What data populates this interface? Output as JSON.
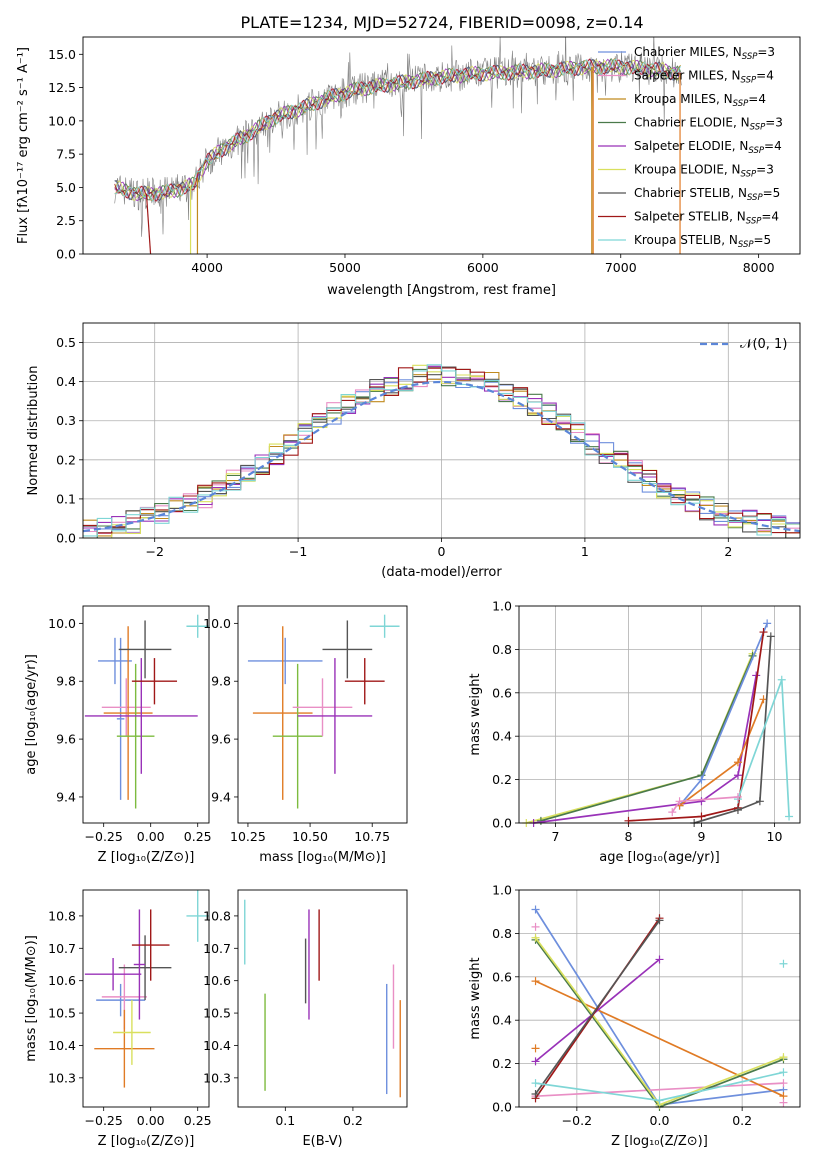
{
  "colors": {
    "Chabrier MILES": "#6e8fdd",
    "Salpeter MILES": "#e98fc5",
    "Kroupa MILES": "#c08a1e",
    "Chabrier ELODIE": "#4a7a4a",
    "Salpeter ELODIE": "#9932b8",
    "Kroupa ELODIE": "#d9e05e",
    "Chabrier STELIB": "#555555",
    "Salpeter STELIB": "#a01818",
    "Kroupa STELIB": "#7fd6d6",
    "data": "#808080",
    "gaussian": "#5b86d8",
    "orange": "#e07b25",
    "green": "#7dbb3f"
  },
  "chart_data": [
    {
      "id": "spectrum",
      "type": "line",
      "title": "PLATE=1234, MJD=52724, FIBERID=0098, z=0.14",
      "xlabel": "wavelength [Angstrom, rest frame]",
      "ylabel": "Flux [fλ10⁻¹⁷ erg cm⁻² s⁻¹ A⁻¹]",
      "xlim": [
        3100,
        8300
      ],
      "ylim": [
        0,
        16.3
      ],
      "xticks": [
        "4000",
        "5000",
        "6000",
        "7000",
        "8000"
      ],
      "yticks": [
        "0.0",
        "2.5",
        "5.0",
        "7.5",
        "10.0",
        "12.5",
        "15.0"
      ],
      "grid": false,
      "legend_position": "top-right",
      "legend": [
        {
          "name": "Chabrier MILES",
          "label": "Chabrier MILES, N",
          "sub": "SSP",
          "val": "=3"
        },
        {
          "name": "Salpeter MILES",
          "label": "Salpeter MILES, N",
          "sub": "SSP",
          "val": "=4"
        },
        {
          "name": "Kroupa MILES",
          "label": "Kroupa MILES, N",
          "sub": "SSP",
          "val": "=4"
        },
        {
          "name": "Chabrier ELODIE",
          "label": "Chabrier ELODIE, N",
          "sub": "SSP",
          "val": "=3"
        },
        {
          "name": "Salpeter ELODIE",
          "label": "Salpeter ELODIE, N",
          "sub": "SSP",
          "val": "=4"
        },
        {
          "name": "Kroupa ELODIE",
          "label": "Kroupa ELODIE, N",
          "sub": "SSP",
          "val": "=3"
        },
        {
          "name": "Chabrier STELIB",
          "label": "Chabrier STELIB, N",
          "sub": "SSP",
          "val": "=5"
        },
        {
          "name": "Salpeter STELIB",
          "label": "Salpeter STELIB, N",
          "sub": "SSP",
          "val": "=4"
        },
        {
          "name": "Kroupa STELIB",
          "label": "Kroupa STELIB, N",
          "sub": "SSP",
          "val": "=5"
        }
      ],
      "continuum": [
        [
          3330,
          5.0
        ],
        [
          3500,
          4.5
        ],
        [
          3700,
          4.6
        ],
        [
          3900,
          5.2
        ],
        [
          4000,
          7.0
        ],
        [
          4100,
          7.8
        ],
        [
          4300,
          9.0
        ],
        [
          4500,
          10.3
        ],
        [
          4700,
          11.0
        ],
        [
          4900,
          11.8
        ],
        [
          5100,
          12.4
        ],
        [
          5300,
          12.7
        ],
        [
          5500,
          13.0
        ],
        [
          5700,
          13.3
        ],
        [
          5900,
          13.5
        ],
        [
          6100,
          13.6
        ],
        [
          6300,
          13.7
        ],
        [
          6500,
          13.8
        ],
        [
          6700,
          14.0
        ],
        [
          6900,
          14.1
        ],
        [
          7100,
          14.0
        ],
        [
          7300,
          13.8
        ],
        [
          7400,
          13.6
        ]
      ],
      "model_range": [
        3330,
        7440
      ],
      "drops": [
        [
          3560,
          3590
        ],
        [
          3880,
          3880
        ],
        [
          3930,
          3930
        ],
        [
          6790,
          6790
        ],
        [
          6800,
          6800
        ],
        [
          7430,
          7430
        ]
      ]
    },
    {
      "id": "residuals",
      "type": "histogram",
      "xlabel": "(data-model)/error",
      "ylabel": "Normed distribution",
      "xlim": [
        -2.5,
        2.5
      ],
      "ylim": [
        0,
        0.55
      ],
      "xticks": [
        "−2",
        "−1",
        "0",
        "1",
        "2"
      ],
      "yticks": [
        "0.0",
        "0.1",
        "0.2",
        "0.3",
        "0.4",
        "0.5"
      ],
      "grid": true,
      "bin_width": 0.1,
      "legend": "𝒩(0, 1)",
      "legend_position": "top-right",
      "series_names": [
        "Chabrier MILES",
        "Salpeter MILES",
        "Kroupa MILES",
        "Chabrier ELODIE",
        "Salpeter ELODIE",
        "Kroupa ELODIE",
        "Chabrier STELIB",
        "Salpeter STELIB",
        "Kroupa STELIB"
      ]
    },
    {
      "id": "age_vs_Z",
      "type": "errorbar",
      "xlabel": "Z [log₁₀(Z/Z⊙)]",
      "ylabel": "age  [log₁₀(age/yr)]",
      "xlim": [
        -0.36,
        0.31
      ],
      "ylim": [
        9.31,
        10.06
      ],
      "xticks": [
        "−0.25",
        "0.00",
        "0.25"
      ],
      "xtick_values": [
        -0.25,
        0,
        0.25
      ],
      "yticks": [
        "9.4",
        "9.6",
        "9.8",
        "10.0"
      ],
      "ytick_values": [
        9.4,
        9.6,
        9.8,
        10.0
      ],
      "points": [
        {
          "c": "Chabrier MILES",
          "x": -0.19,
          "xerr": 0.09,
          "y": 9.87,
          "yerr": 0.08
        },
        {
          "c": "Chabrier MILES",
          "x": -0.16,
          "xerr": 0.02,
          "y": 9.67,
          "yerr": 0.28
        },
        {
          "c": "Salpeter MILES",
          "x": -0.13,
          "xerr": 0.13,
          "y": 9.71,
          "yerr": 0.1
        },
        {
          "c": "orange",
          "x": -0.12,
          "xerr": 0.13,
          "y": 9.69,
          "yerr": 0.3
        },
        {
          "c": "green",
          "x": -0.08,
          "xerr": 0.1,
          "y": 9.61,
          "yerr": 0.25
        },
        {
          "c": "Salpeter ELODIE",
          "x": -0.05,
          "xerr": 0.3,
          "y": 9.68,
          "yerr": 0.2
        },
        {
          "c": "Chabrier STELIB",
          "x": -0.03,
          "xerr": 0.14,
          "y": 9.91,
          "yerr": 0.1
        },
        {
          "c": "Salpeter STELIB",
          "x": 0.02,
          "xerr": 0.12,
          "y": 9.8,
          "yerr": 0.08
        },
        {
          "c": "Kroupa STELIB",
          "x": 0.25,
          "xerr": 0.06,
          "y": 9.99,
          "yerr": 0.04
        }
      ]
    },
    {
      "id": "age_vs_mass",
      "type": "errorbar",
      "xlabel": "mass [log₁₀(M/M⊙)]",
      "ylabel": "",
      "xlim": [
        10.21,
        10.89
      ],
      "ylim": [
        9.31,
        10.06
      ],
      "xticks": [
        "10.25",
        "10.50",
        "10.75"
      ],
      "xtick_values": [
        10.25,
        10.5,
        10.75
      ],
      "yticks": [
        "9.4",
        "9.6",
        "9.8",
        "10.0"
      ],
      "ytick_values": [
        9.4,
        9.6,
        9.8,
        10.0
      ],
      "points": [
        {
          "c": "Chabrier MILES",
          "x": 10.4,
          "xerr": 0.15,
          "y": 9.87,
          "yerr": 0.08
        },
        {
          "c": "orange",
          "x": 10.39,
          "xerr": 0.12,
          "y": 9.69,
          "yerr": 0.3
        },
        {
          "c": "green",
          "x": 10.45,
          "xerr": 0.1,
          "y": 9.61,
          "yerr": 0.25
        },
        {
          "c": "Salpeter MILES",
          "x": 10.55,
          "xerr": 0.12,
          "y": 9.71,
          "yerr": 0.1
        },
        {
          "c": "Salpeter ELODIE",
          "x": 10.6,
          "xerr": 0.15,
          "y": 9.68,
          "yerr": 0.2
        },
        {
          "c": "Chabrier STELIB",
          "x": 10.65,
          "xerr": 0.1,
          "y": 9.91,
          "yerr": 0.1
        },
        {
          "c": "Salpeter STELIB",
          "x": 10.72,
          "xerr": 0.08,
          "y": 9.8,
          "yerr": 0.08
        },
        {
          "c": "Kroupa STELIB",
          "x": 10.8,
          "xerr": 0.06,
          "y": 9.99,
          "yerr": 0.04
        }
      ]
    },
    {
      "id": "mass_weight_vs_age",
      "type": "line",
      "xlabel": "age  [log₁₀(age/yr)]",
      "ylabel": "mass weight",
      "xlim": [
        6.5,
        10.35
      ],
      "ylim": [
        0,
        1.0
      ],
      "xticks": [
        "7",
        "8",
        "9",
        "10"
      ],
      "xtick_values": [
        7,
        8,
        9,
        10
      ],
      "yticks": [
        "0.0",
        "0.2",
        "0.4",
        "0.6",
        "0.8",
        "1.0"
      ],
      "ytick_values": [
        0,
        0.2,
        0.4,
        0.6,
        0.8,
        1.0
      ],
      "grid": true,
      "series": [
        {
          "c": "Kroupa ELODIE",
          "points": [
            [
              6.6,
              0.0
            ],
            [
              9.0,
              0.22
            ],
            [
              9.7,
              0.78
            ]
          ]
        },
        {
          "c": "Chabrier ELODIE",
          "points": [
            [
              6.8,
              0.01
            ],
            [
              9.0,
              0.22
            ],
            [
              9.7,
              0.77
            ]
          ]
        },
        {
          "c": "Chabrier MILES",
          "points": [
            [
              8.7,
              0.08
            ],
            [
              9.0,
              0.2
            ],
            [
              9.9,
              0.92
            ]
          ]
        },
        {
          "c": "Salpeter ELODIE",
          "points": [
            [
              6.7,
              0.0
            ],
            [
              9.0,
              0.1
            ],
            [
              9.5,
              0.22
            ],
            [
              9.75,
              0.68
            ]
          ]
        },
        {
          "c": "orange",
          "points": [
            [
              8.7,
              0.08
            ],
            [
              9.5,
              0.28
            ],
            [
              9.85,
              0.57
            ]
          ]
        },
        {
          "c": "Salpeter STELIB",
          "points": [
            [
              8.0,
              0.01
            ],
            [
              9.0,
              0.03
            ],
            [
              9.5,
              0.07
            ],
            [
              9.85,
              0.88
            ]
          ]
        },
        {
          "c": "Chabrier STELIB",
          "points": [
            [
              8.9,
              0.0
            ],
            [
              9.5,
              0.06
            ],
            [
              9.8,
              0.1
            ],
            [
              9.95,
              0.86
            ]
          ]
        },
        {
          "c": "Kroupa STELIB",
          "points": [
            [
              9.5,
              0.11
            ],
            [
              10.1,
              0.66
            ],
            [
              10.2,
              0.03
            ]
          ]
        },
        {
          "c": "Salpeter MILES",
          "points": [
            [
              8.6,
              0.05
            ],
            [
              8.7,
              0.1
            ],
            [
              9.5,
              0.12
            ]
          ]
        }
      ]
    },
    {
      "id": "mass_vs_Z",
      "type": "errorbar",
      "xlabel": "Z [log₁₀(Z/Z⊙)]",
      "ylabel": "mass [log₁₀(M/M⊙)]",
      "xlim": [
        -0.36,
        0.31
      ],
      "ylim": [
        10.21,
        10.88
      ],
      "xticks": [
        "−0.25",
        "0.00",
        "0.25"
      ],
      "xtick_values": [
        -0.25,
        0,
        0.25
      ],
      "yticks": [
        "10.3",
        "10.4",
        "10.5",
        "10.6",
        "10.7",
        "10.8"
      ],
      "ytick_values": [
        10.3,
        10.4,
        10.5,
        10.6,
        10.7,
        10.8
      ],
      "points": [
        {
          "c": "Chabrier MILES",
          "x": -0.16,
          "xerr": 0.13,
          "y": 10.54,
          "yerr": 0.05
        },
        {
          "c": "Salpeter MILES",
          "x": -0.14,
          "xerr": 0.12,
          "y": 10.55,
          "yerr": 0.1
        },
        {
          "c": "Salpeter ELODIE",
          "x": -0.2,
          "xerr": 0.15,
          "y": 10.62,
          "yerr": 0.05
        },
        {
          "c": "orange",
          "x": -0.14,
          "xerr": 0.16,
          "y": 10.39,
          "yerr": 0.12
        },
        {
          "c": "Kroupa ELODIE",
          "x": -0.1,
          "xerr": 0.1,
          "y": 10.44,
          "yerr": 0.1
        },
        {
          "c": "Chabrier STELIB",
          "x": -0.03,
          "xerr": 0.14,
          "y": 10.64,
          "yerr": 0.1
        },
        {
          "c": "Salpeter ELODIE",
          "x": -0.06,
          "xerr": 0.03,
          "y": 10.65,
          "yerr": 0.17
        },
        {
          "c": "Salpeter STELIB",
          "x": 0.0,
          "xerr": 0.1,
          "y": 10.71,
          "yerr": 0.11
        },
        {
          "c": "Kroupa STELIB",
          "x": 0.25,
          "xerr": 0.06,
          "y": 10.8,
          "yerr": 0.08
        }
      ]
    },
    {
      "id": "mass_vs_ebv",
      "type": "errorbar",
      "xlabel": "E(B-V)",
      "ylabel": "",
      "xlim": [
        0.03,
        0.28
      ],
      "ylim": [
        10.21,
        10.88
      ],
      "xticks": [
        "0.1",
        "0.2"
      ],
      "xtick_values": [
        0.1,
        0.2
      ],
      "yticks": [
        "10.3",
        "10.4",
        "10.5",
        "10.6",
        "10.7",
        "10.8"
      ],
      "ytick_values": [
        10.3,
        10.4,
        10.5,
        10.6,
        10.7,
        10.8
      ],
      "points": [
        {
          "c": "Kroupa STELIB",
          "x": 0.04,
          "xerr": 0,
          "y": 10.75,
          "yerr": 0.1
        },
        {
          "c": "green",
          "x": 0.07,
          "xerr": 0,
          "y": 10.41,
          "yerr": 0.15
        },
        {
          "c": "Chabrier STELIB",
          "x": 0.13,
          "xerr": 0,
          "y": 10.63,
          "yerr": 0.1
        },
        {
          "c": "Salpeter ELODIE",
          "x": 0.135,
          "xerr": 0,
          "y": 10.65,
          "yerr": 0.17
        },
        {
          "c": "Salpeter STELIB",
          "x": 0.15,
          "xerr": 0,
          "y": 10.71,
          "yerr": 0.11
        },
        {
          "c": "Chabrier MILES",
          "x": 0.25,
          "xerr": 0,
          "y": 10.42,
          "yerr": 0.17
        },
        {
          "c": "Salpeter MILES",
          "x": 0.26,
          "xerr": 0,
          "y": 10.52,
          "yerr": 0.13
        },
        {
          "c": "orange",
          "x": 0.27,
          "xerr": 0,
          "y": 10.39,
          "yerr": 0.15
        }
      ]
    },
    {
      "id": "mass_weight_vs_Z",
      "type": "line",
      "xlabel": "Z [log₁₀(Z/Z⊙)]",
      "ylabel": "mass weight",
      "xlim": [
        -0.34,
        0.34
      ],
      "ylim": [
        0,
        1.0
      ],
      "xticks": [
        "−0.2",
        "0.0",
        "0.2"
      ],
      "xtick_values": [
        -0.2,
        0,
        0.2
      ],
      "yticks": [
        "0.0",
        "0.2",
        "0.4",
        "0.6",
        "0.8",
        "1.0"
      ],
      "ytick_values": [
        0,
        0.2,
        0.4,
        0.6,
        0.8,
        1.0
      ],
      "grid": true,
      "series": [
        {
          "c": "Chabrier MILES",
          "points": [
            [
              -0.3,
              0.91
            ],
            [
              0.0,
              0.01
            ],
            [
              0.3,
              0.08
            ]
          ]
        },
        {
          "c": "Salpeter MILES",
          "points": [
            [
              -0.3,
              0.05
            ],
            [
              0.3,
              0.11
            ]
          ]
        },
        {
          "c": "orange",
          "points": [
            [
              -0.3,
              0.58
            ],
            [
              0.3,
              0.05
            ]
          ]
        },
        {
          "c": "Chabrier ELODIE",
          "points": [
            [
              -0.3,
              0.77
            ],
            [
              0.0,
              0.0
            ],
            [
              0.3,
              0.22
            ]
          ]
        },
        {
          "c": "Kroupa ELODIE",
          "points": [
            [
              -0.3,
              0.78
            ],
            [
              0.0,
              0.01
            ],
            [
              0.3,
              0.23
            ]
          ]
        },
        {
          "c": "Salpeter ELODIE",
          "points": [
            [
              -0.3,
              0.21
            ],
            [
              0.0,
              0.68
            ]
          ]
        },
        {
          "c": "Salpeter STELIB",
          "points": [
            [
              -0.3,
              0.04
            ],
            [
              0.0,
              0.87
            ]
          ]
        },
        {
          "c": "Chabrier STELIB",
          "points": [
            [
              -0.3,
              0.06
            ],
            [
              0.0,
              0.86
            ]
          ]
        },
        {
          "c": "Kroupa STELIB",
          "points": [
            [
              -0.3,
              0.11
            ],
            [
              0.0,
              0.03
            ],
            [
              0.3,
              0.16
            ]
          ]
        }
      ],
      "extra_ticks": [
        [
          -0.3,
          0.27
        ],
        [
          -0.3,
          0.83
        ],
        [
          0.3,
          0.66
        ],
        [
          0.3,
          0.02
        ]
      ]
    }
  ]
}
